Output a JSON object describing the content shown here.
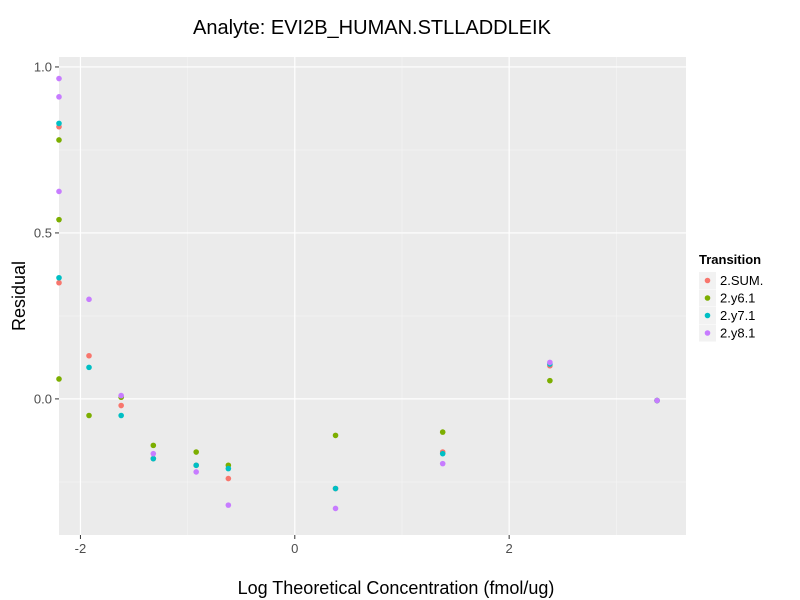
{
  "chart_data": {
    "type": "scatter",
    "title": "Analyte: EVI2B_HUMAN.STLLADDLEIK",
    "xlabel": "Log Theoretical Concentration (fmol/ug)",
    "ylabel": "Residual",
    "xlim": [
      -2.2,
      3.65
    ],
    "ylim": [
      -0.41,
      1.03
    ],
    "x_ticks": [
      {
        "value": -2,
        "label": "-2"
      },
      {
        "value": 0,
        "label": "0"
      },
      {
        "value": 2,
        "label": "2"
      }
    ],
    "y_ticks": [
      {
        "value": 0,
        "label": "0.0"
      },
      {
        "value": 0.5,
        "label": "0.5"
      },
      {
        "value": 1,
        "label": "1.0"
      }
    ],
    "grid": true,
    "legend": {
      "title": "Transition",
      "position": "right"
    },
    "series": [
      {
        "name": "2.SUM.",
        "color": "#F8766D",
        "points": [
          {
            "x": -2.2,
            "y": 0.35
          },
          {
            "x": -2.2,
            "y": 0.82
          },
          {
            "x": -1.92,
            "y": 0.13
          },
          {
            "x": -1.62,
            "y": -0.02
          },
          {
            "x": -1.32,
            "y": -0.18
          },
          {
            "x": -0.92,
            "y": -0.2
          },
          {
            "x": -0.62,
            "y": -0.24
          },
          {
            "x": 0.38,
            "y": -0.27
          },
          {
            "x": 1.38,
            "y": -0.16
          },
          {
            "x": 2.38,
            "y": 0.1
          },
          {
            "x": 3.38,
            "y": -0.005
          }
        ]
      },
      {
        "name": "2.y6.1",
        "color": "#7CAE00",
        "points": [
          {
            "x": -2.2,
            "y": 0.06
          },
          {
            "x": -2.2,
            "y": 0.54
          },
          {
            "x": -2.2,
            "y": 0.78
          },
          {
            "x": -1.92,
            "y": -0.05
          },
          {
            "x": -1.62,
            "y": 0.005
          },
          {
            "x": -1.32,
            "y": -0.14
          },
          {
            "x": -0.92,
            "y": -0.16
          },
          {
            "x": -0.62,
            "y": -0.2
          },
          {
            "x": 0.38,
            "y": -0.11
          },
          {
            "x": 1.38,
            "y": -0.1
          },
          {
            "x": 2.38,
            "y": 0.055
          },
          {
            "x": 3.38,
            "y": -0.005
          }
        ]
      },
      {
        "name": "2.y7.1",
        "color": "#00BFC4",
        "points": [
          {
            "x": -2.2,
            "y": 0.365
          },
          {
            "x": -2.2,
            "y": 0.83
          },
          {
            "x": -1.92,
            "y": 0.095
          },
          {
            "x": -1.62,
            "y": -0.05
          },
          {
            "x": -1.32,
            "y": -0.18
          },
          {
            "x": -0.92,
            "y": -0.2
          },
          {
            "x": -0.62,
            "y": -0.21
          },
          {
            "x": 0.38,
            "y": -0.27
          },
          {
            "x": 1.38,
            "y": -0.165
          },
          {
            "x": 2.38,
            "y": 0.105
          },
          {
            "x": 3.38,
            "y": -0.005
          }
        ]
      },
      {
        "name": "2.y8.1",
        "color": "#C77CFF",
        "points": [
          {
            "x": -2.2,
            "y": 0.625
          },
          {
            "x": -2.2,
            "y": 0.91
          },
          {
            "x": -2.2,
            "y": 0.965
          },
          {
            "x": -1.92,
            "y": 0.3
          },
          {
            "x": -1.62,
            "y": 0.01
          },
          {
            "x": -1.32,
            "y": -0.165
          },
          {
            "x": -0.92,
            "y": -0.22
          },
          {
            "x": -0.62,
            "y": -0.32
          },
          {
            "x": 0.38,
            "y": -0.33
          },
          {
            "x": 1.38,
            "y": -0.195
          },
          {
            "x": 2.38,
            "y": 0.11
          },
          {
            "x": 3.38,
            "y": -0.005
          }
        ]
      }
    ]
  }
}
